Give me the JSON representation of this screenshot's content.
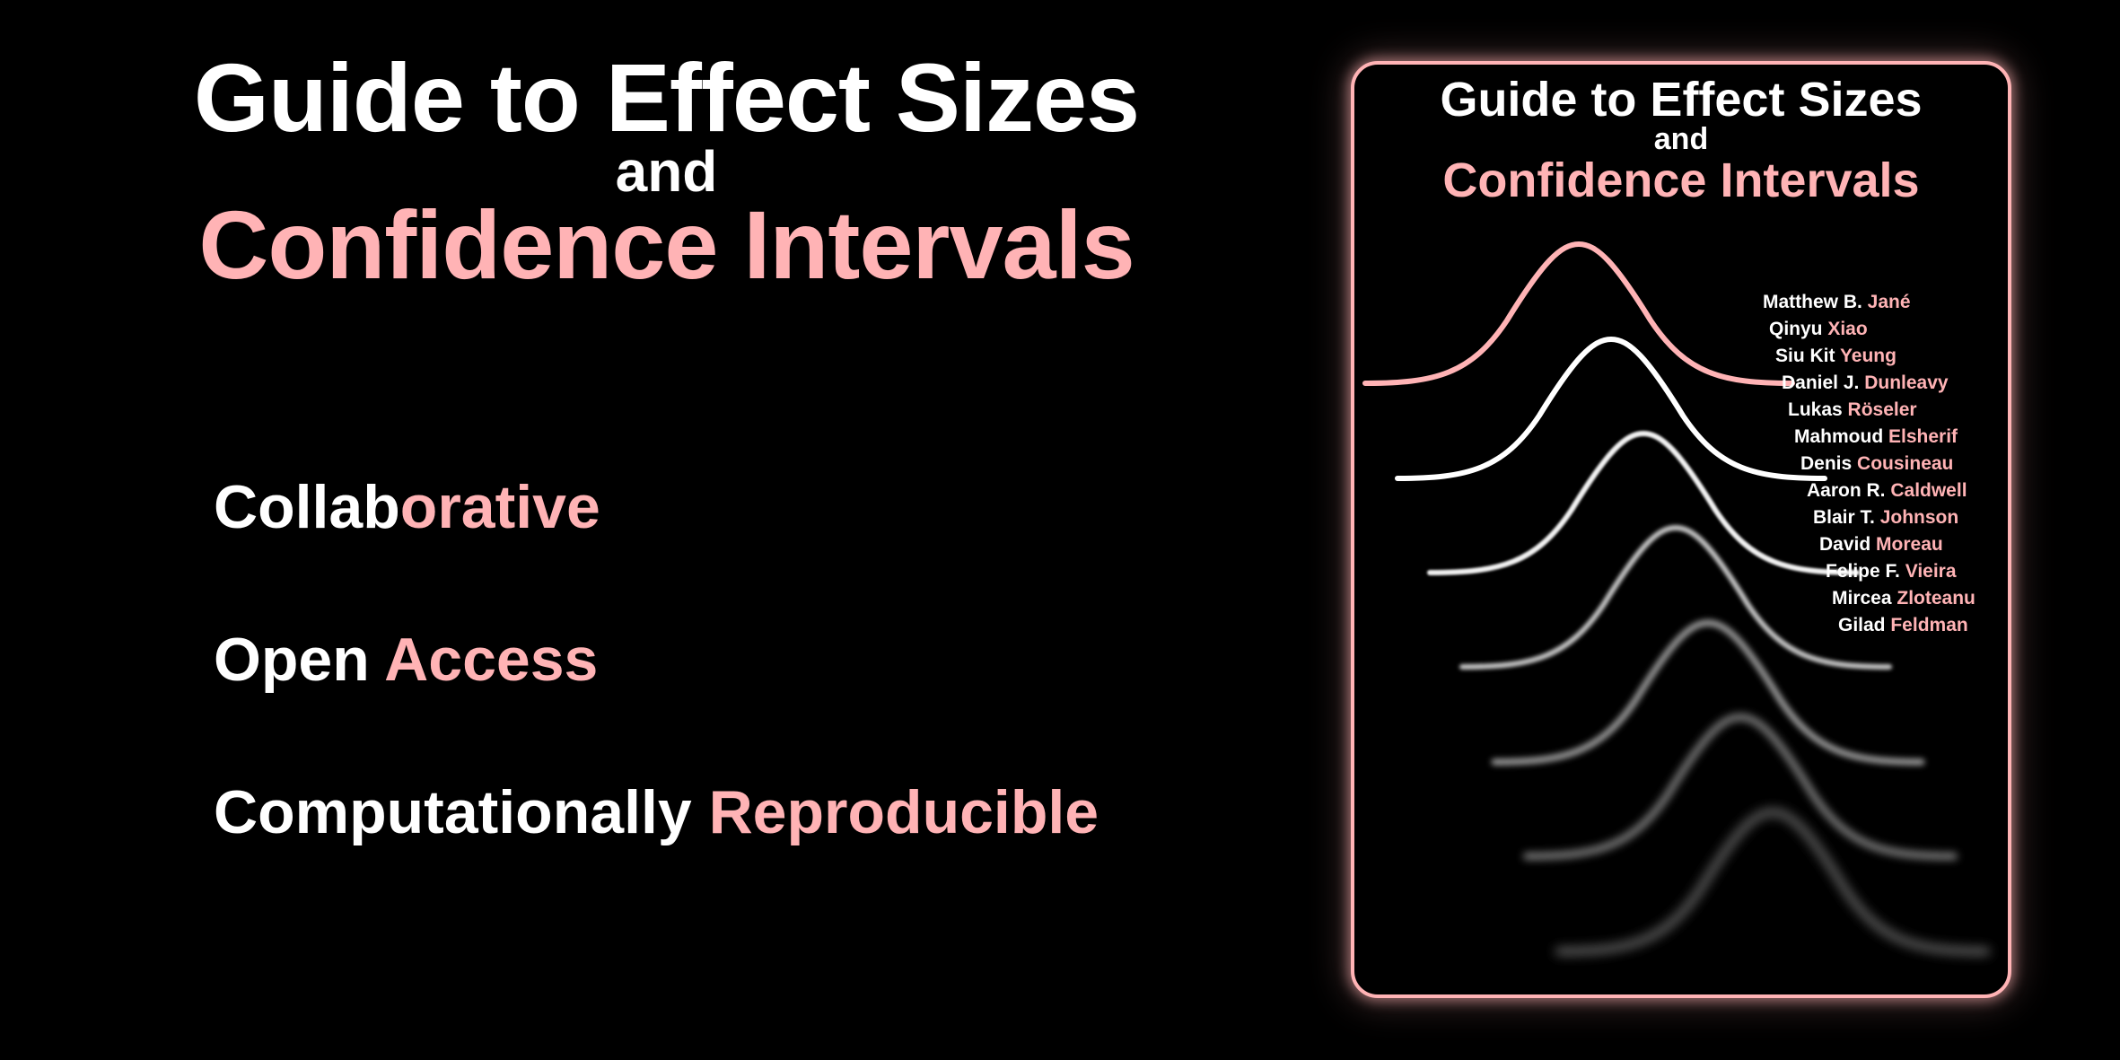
{
  "heading": {
    "line1": "Guide to Effect Sizes",
    "line2": "and",
    "line3": "Confidence Intervals"
  },
  "features": [
    {
      "white": "Collab",
      "pink": "orative"
    },
    {
      "white": "Open ",
      "pink": "Access"
    },
    {
      "white": "Computationally ",
      "pink": "Reproducible"
    }
  ],
  "cover": {
    "title1": "Guide to Effect Sizes",
    "title2": "and",
    "title3": "Confidence Intervals",
    "authors": [
      {
        "first": "Matthew B. ",
        "last": "Jané"
      },
      {
        "first": "Qinyu ",
        "last": "Xiao"
      },
      {
        "first": "Siu Kit ",
        "last": "Yeung"
      },
      {
        "first": "Daniel J. ",
        "last": "Dunleavy"
      },
      {
        "first": "Lukas ",
        "last": "Röseler"
      },
      {
        "first": "Mahmoud ",
        "last": "Elsherif"
      },
      {
        "first": "Denis ",
        "last": "Cousineau"
      },
      {
        "first": "Aaron R. ",
        "last": "Caldwell"
      },
      {
        "first": "Blair T. ",
        "last": "Johnson"
      },
      {
        "first": "David ",
        "last": "Moreau"
      },
      {
        "first": "Felipe F. ",
        "last": "Vieira"
      },
      {
        "first": "Mircea ",
        "last": "Zloteanu"
      },
      {
        "first": "Gilad ",
        "last": "Feldman"
      }
    ]
  },
  "colors": {
    "accent": "#ffb3b5",
    "text": "#ffffff",
    "background": "#000000"
  }
}
